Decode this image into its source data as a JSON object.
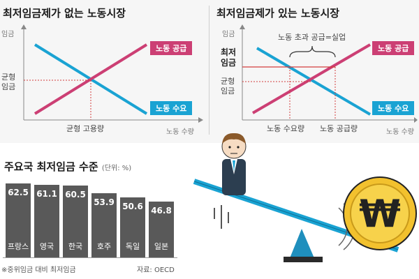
{
  "colors": {
    "supply": "#cc3f74",
    "demand": "#1aa3d3",
    "bar": "#595959",
    "guide": "#d23c3c",
    "axis": "#888888"
  },
  "left_chart": {
    "title": "최저임금제가 없는 노동시장",
    "ylabel": "임금",
    "xlabel": "노동 수량",
    "eq_wage_label": "균형\n임금",
    "eq_qty_label": "균형 고용량",
    "supply_label": "노동 공급",
    "demand_label": "노동 수요"
  },
  "right_chart": {
    "title": "최저임금제가 있는 노동시장",
    "ylabel": "임금",
    "xlabel": "노동 수량",
    "min_wage_label": "최저\n임금",
    "eq_wage_label": "균형\n임금",
    "surplus_label": "노동 초과 공급=실업",
    "qd_label": "노동 수요량",
    "qs_label": "노동 공급량",
    "supply_label": "노동 공급",
    "demand_label": "노동 수요"
  },
  "chart_data": [
    {
      "type": "bar",
      "title": "주요국 최저임금 수준",
      "unit": "(단위: %)",
      "categories": [
        "프랑스",
        "영국",
        "한국",
        "호주",
        "독일",
        "일본"
      ],
      "values": [
        62.5,
        61.1,
        60.5,
        53.9,
        50.6,
        46.8
      ],
      "ylim": [
        0,
        70
      ],
      "note": "※중위임금 대비 최저임금",
      "source": "자료: OECD"
    }
  ],
  "illustration": {
    "coin_symbol": "₩"
  }
}
